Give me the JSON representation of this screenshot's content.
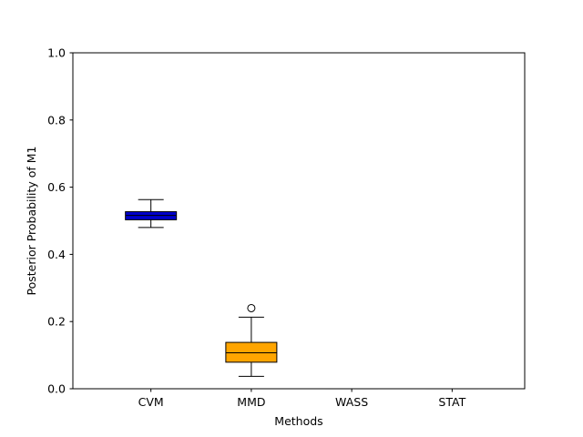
{
  "chart_data": {
    "type": "box",
    "title": "",
    "xlabel": "Methods",
    "ylabel": "Posterior Probability of M1",
    "ylim": [
      0,
      1
    ],
    "yticks": [
      0.0,
      0.2,
      0.4,
      0.6,
      0.8,
      1.0
    ],
    "ytick_labels": [
      "0.0",
      "0.2",
      "0.4",
      "0.6",
      "0.8",
      "1.0"
    ],
    "categories": [
      "CVM",
      "MMD",
      "WASS",
      "STAT"
    ],
    "boxes": [
      {
        "category": "CVM",
        "whisker_low": 0.48,
        "q1": 0.503,
        "median": 0.516,
        "q3": 0.527,
        "whisker_high": 0.563,
        "outliers": [],
        "color": "#0000cc"
      },
      {
        "category": "MMD",
        "whisker_low": 0.037,
        "q1": 0.079,
        "median": 0.107,
        "q3": 0.138,
        "whisker_high": 0.213,
        "outliers": [
          0.24
        ],
        "color": "#ffa500"
      },
      {
        "category": "WASS",
        "whisker_low": 0.0,
        "q1": 0.0,
        "median": 0.0,
        "q3": 0.0,
        "whisker_high": 0.0,
        "outliers": [],
        "color": "#ffffff"
      },
      {
        "category": "STAT",
        "whisker_low": 0.0,
        "q1": 0.0,
        "median": 0.0,
        "q3": 0.0,
        "whisker_high": 0.0,
        "outliers": [],
        "color": "#ffffff"
      }
    ],
    "grid": false,
    "legend": "none"
  }
}
